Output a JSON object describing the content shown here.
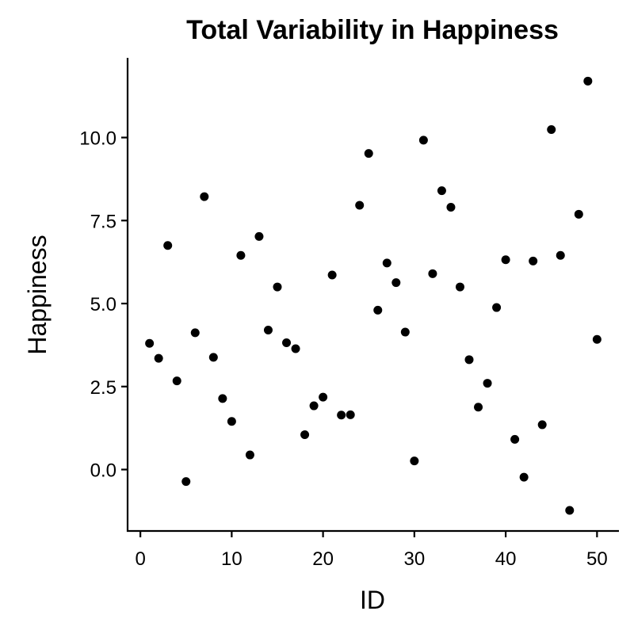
{
  "chart_data": {
    "type": "scatter",
    "title": "Total Variability in Happiness",
    "xlabel": "ID",
    "ylabel": "Happiness",
    "xlim": [
      -1.4,
      52.4
    ],
    "ylim": [
      -1.85,
      12.4
    ],
    "x_ticks": [
      0,
      10,
      20,
      30,
      40,
      50
    ],
    "y_ticks": [
      0.0,
      2.5,
      5.0,
      7.5,
      10.0
    ],
    "x_tick_labels": [
      "0",
      "10",
      "20",
      "30",
      "40",
      "50"
    ],
    "y_tick_labels": [
      "0.0",
      "2.5",
      "5.0",
      "7.5",
      "10.0"
    ],
    "grid": false,
    "point_color": "#000000",
    "points": [
      {
        "x": 1,
        "y": 3.8
      },
      {
        "x": 2,
        "y": 3.35
      },
      {
        "x": 3,
        "y": 6.75
      },
      {
        "x": 4,
        "y": 2.67
      },
      {
        "x": 5,
        "y": -0.36
      },
      {
        "x": 6,
        "y": 4.12
      },
      {
        "x": 7,
        "y": 8.22
      },
      {
        "x": 8,
        "y": 3.38
      },
      {
        "x": 9,
        "y": 2.14
      },
      {
        "x": 10,
        "y": 1.45
      },
      {
        "x": 11,
        "y": 6.45
      },
      {
        "x": 12,
        "y": 0.44
      },
      {
        "x": 13,
        "y": 7.02
      },
      {
        "x": 14,
        "y": 4.2
      },
      {
        "x": 15,
        "y": 5.5
      },
      {
        "x": 16,
        "y": 3.82
      },
      {
        "x": 17,
        "y": 3.64
      },
      {
        "x": 18,
        "y": 1.05
      },
      {
        "x": 19,
        "y": 1.92
      },
      {
        "x": 20,
        "y": 2.18
      },
      {
        "x": 21,
        "y": 5.86
      },
      {
        "x": 22,
        "y": 1.64
      },
      {
        "x": 23,
        "y": 1.65
      },
      {
        "x": 24,
        "y": 7.96
      },
      {
        "x": 25,
        "y": 9.52
      },
      {
        "x": 26,
        "y": 4.8
      },
      {
        "x": 27,
        "y": 6.22
      },
      {
        "x": 28,
        "y": 5.63
      },
      {
        "x": 29,
        "y": 4.14
      },
      {
        "x": 30,
        "y": 0.26
      },
      {
        "x": 31,
        "y": 9.92
      },
      {
        "x": 32,
        "y": 5.9
      },
      {
        "x": 33,
        "y": 8.4
      },
      {
        "x": 34,
        "y": 7.9
      },
      {
        "x": 35,
        "y": 5.5
      },
      {
        "x": 36,
        "y": 3.31
      },
      {
        "x": 37,
        "y": 1.88
      },
      {
        "x": 38,
        "y": 2.6
      },
      {
        "x": 39,
        "y": 4.88
      },
      {
        "x": 40,
        "y": 6.32
      },
      {
        "x": 41,
        "y": 0.91
      },
      {
        "x": 42,
        "y": -0.23
      },
      {
        "x": 43,
        "y": 6.28
      },
      {
        "x": 44,
        "y": 1.35
      },
      {
        "x": 45,
        "y": 10.24
      },
      {
        "x": 46,
        "y": 6.45
      },
      {
        "x": 47,
        "y": -1.23
      },
      {
        "x": 48,
        "y": 7.69
      },
      {
        "x": 49,
        "y": 11.7
      },
      {
        "x": 50,
        "y": 3.92
      }
    ]
  }
}
